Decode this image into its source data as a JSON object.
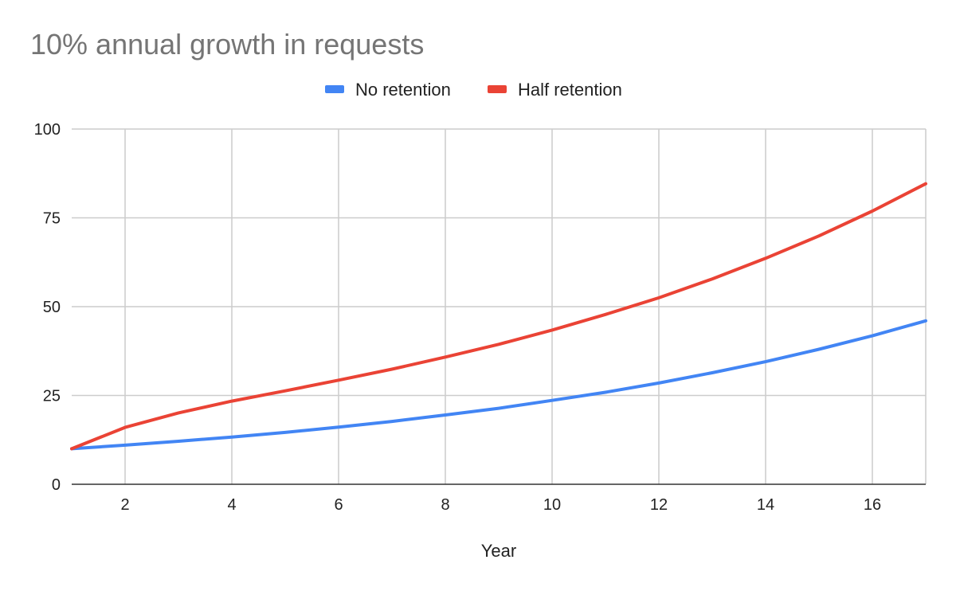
{
  "chart_data": {
    "type": "line",
    "title": "10% annual growth in requests",
    "xlabel": "Year",
    "ylabel": "",
    "xlim": [
      1,
      17
    ],
    "ylim": [
      0,
      100
    ],
    "x_ticks": [
      2,
      4,
      6,
      8,
      10,
      12,
      14,
      16
    ],
    "y_ticks": [
      0,
      25,
      50,
      75,
      100
    ],
    "grid": true,
    "legend_position": "top",
    "x": [
      1,
      2,
      3,
      4,
      5,
      6,
      7,
      8,
      9,
      10,
      11,
      12,
      13,
      14,
      15,
      16,
      17
    ],
    "series": [
      {
        "name": "No retention",
        "color": "#4285F4",
        "values": [
          10,
          11,
          12.1,
          13.3,
          14.6,
          16.1,
          17.7,
          19.5,
          21.4,
          23.6,
          25.9,
          28.5,
          31.4,
          34.5,
          38,
          41.8,
          46
        ]
      },
      {
        "name": "Half retention",
        "color": "#EA4335",
        "values": [
          10,
          16,
          20.1,
          23.4,
          26.3,
          29.3,
          32.4,
          35.8,
          39.4,
          43.4,
          47.8,
          52.5,
          57.8,
          63.6,
          69.9,
          76.9,
          84.6
        ]
      }
    ]
  }
}
